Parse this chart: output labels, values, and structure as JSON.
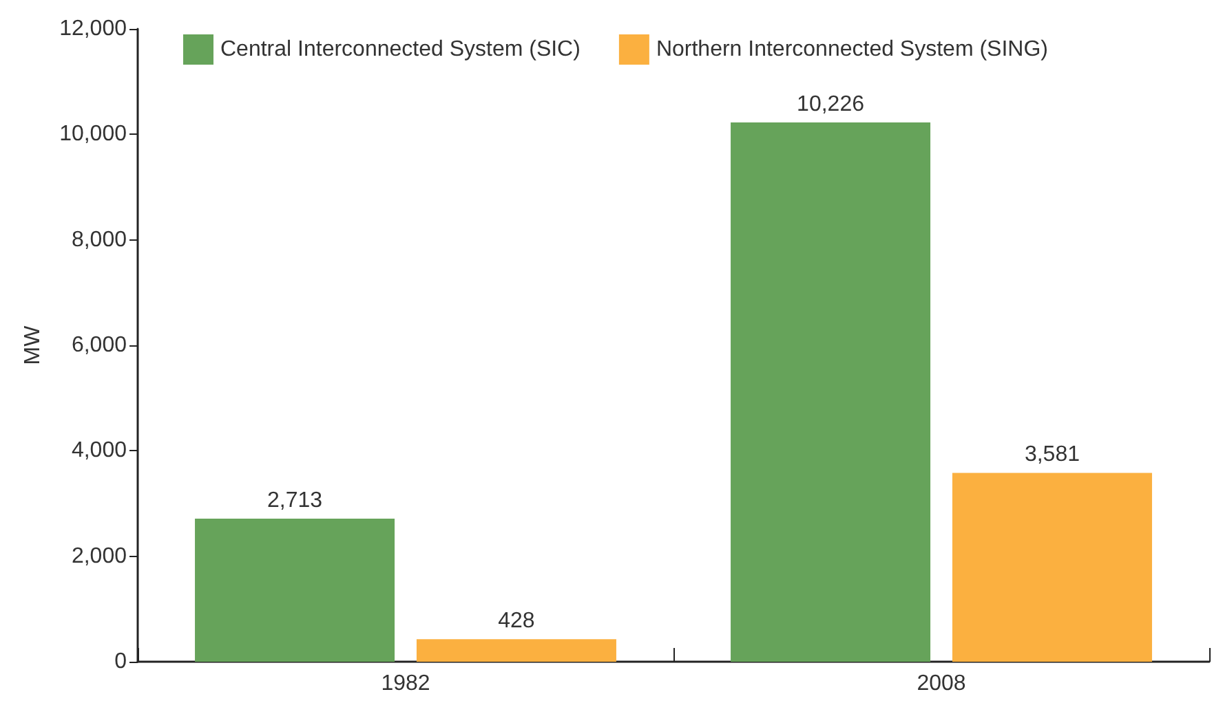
{
  "chart_data": {
    "type": "bar",
    "ylabel": "MW",
    "categories": [
      "1982",
      "2008"
    ],
    "series": [
      {
        "name": "Central Interconnected System (SIC)",
        "color": "#66a35a",
        "values": [
          2713,
          10226
        ],
        "value_labels": [
          "2,713",
          "10,226"
        ]
      },
      {
        "name": "Northern Interconnected System (SING)",
        "color": "#fbb040",
        "values": [
          428,
          3581
        ],
        "value_labels": [
          "428",
          "3,581"
        ]
      }
    ],
    "ylim": [
      0,
      12000
    ],
    "yticks": [
      0,
      {
        "value": 2000,
        "label": "2,000"
      },
      {
        "value": 4000,
        "label": "4,000"
      },
      {
        "value": 6000,
        "label": "6,000"
      },
      {
        "value": 8000,
        "label": "8,000"
      },
      {
        "value": 10000,
        "label": "10,000"
      },
      {
        "value": 12000,
        "label": "12,000"
      }
    ],
    "legend": "top",
    "grid": false
  }
}
